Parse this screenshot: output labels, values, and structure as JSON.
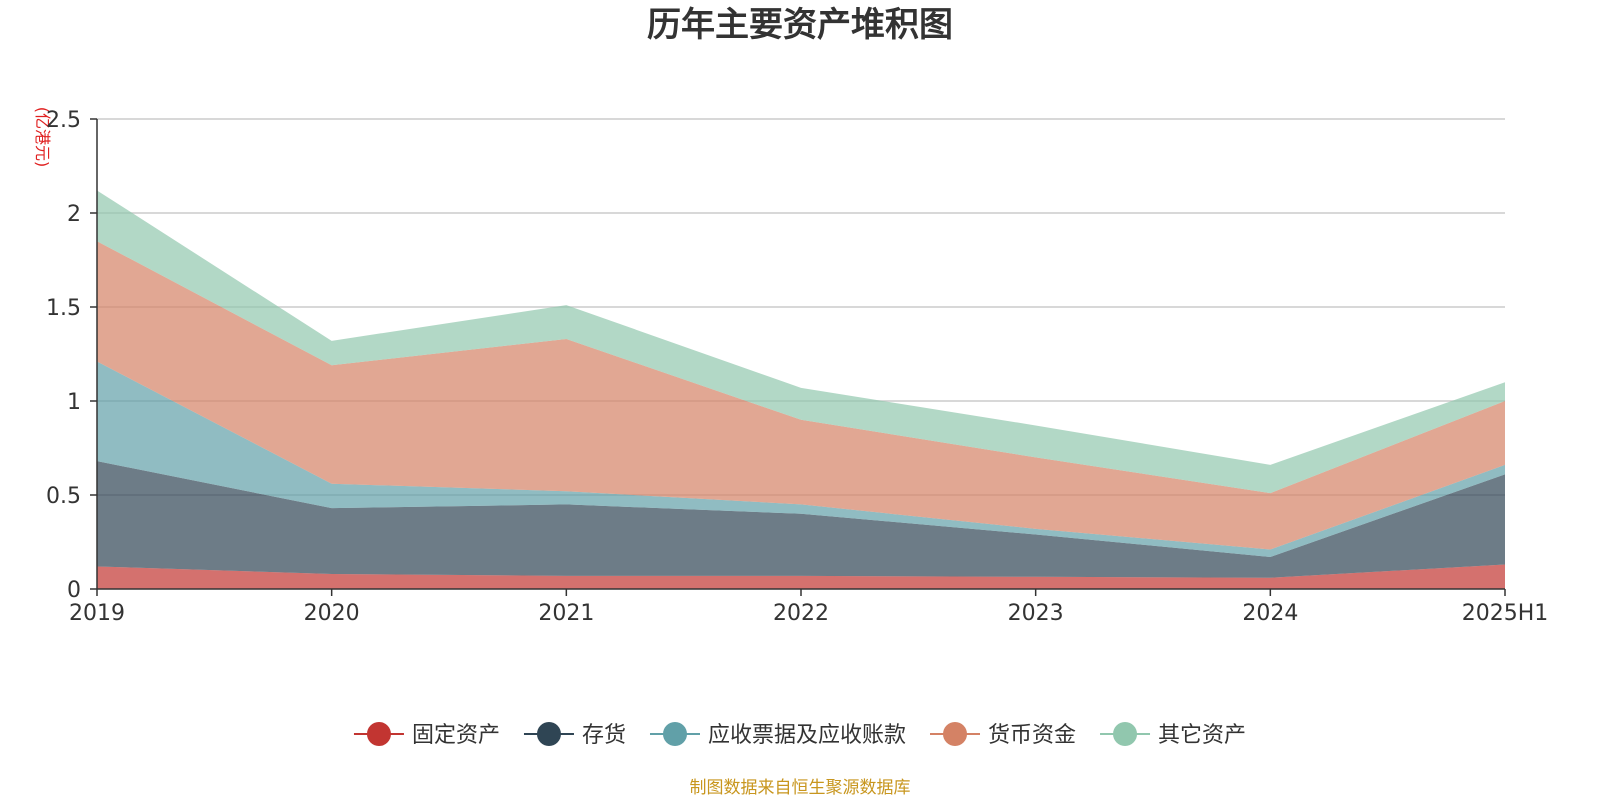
{
  "chart_data": {
    "type": "area",
    "stacked": true,
    "title": "历年主要资产堆积图",
    "unit_label": "(亿港元)",
    "categories": [
      "2019",
      "2020",
      "2021",
      "2022",
      "2023",
      "2024",
      "2025H1"
    ],
    "y_ticks": [
      "0",
      "0.5",
      "1",
      "1.5",
      "2",
      "2.5"
    ],
    "ylim": [
      0,
      2.5
    ],
    "grid": true,
    "legend_position": "bottom",
    "series": [
      {
        "name": "固定资产",
        "color": "#c23531",
        "values": [
          0.12,
          0.08,
          0.07,
          0.07,
          0.065,
          0.06,
          0.13
        ]
      },
      {
        "name": "存货",
        "color": "#2f4554",
        "values": [
          0.56,
          0.35,
          0.38,
          0.33,
          0.225,
          0.11,
          0.48
        ]
      },
      {
        "name": "应收票据及应收账款",
        "color": "#61a0a8",
        "values": [
          0.53,
          0.13,
          0.07,
          0.05,
          0.03,
          0.04,
          0.05
        ]
      },
      {
        "name": "货币资金",
        "color": "#d48265",
        "values": [
          0.64,
          0.63,
          0.81,
          0.45,
          0.38,
          0.3,
          0.34
        ]
      },
      {
        "name": "其它资产",
        "color": "#91c7ae",
        "values": [
          0.27,
          0.13,
          0.18,
          0.17,
          0.17,
          0.15,
          0.1
        ]
      }
    ],
    "source": "制图数据来自恒生聚源数据库"
  }
}
